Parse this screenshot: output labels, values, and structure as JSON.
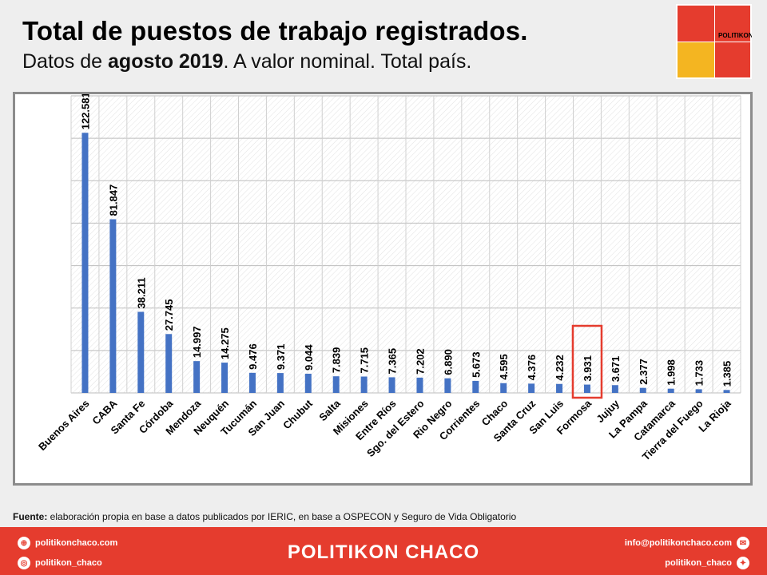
{
  "header": {
    "title": "Total de puestos de trabajo registrados.",
    "subtitle_prefix": "Datos de ",
    "subtitle_bold": "agosto 2019",
    "subtitle_suffix": ". A valor nominal. Total país.",
    "logo_text": "POLITIKON",
    "logo_colors": [
      "#e53c2e",
      "#f4b521"
    ]
  },
  "chart_data": {
    "type": "bar",
    "categories": [
      "Buenos Aires",
      "CABA",
      "Santa Fe",
      "Córdoba",
      "Mendoza",
      "Neuquén",
      "Tucumán",
      "San Juan",
      "Chubut",
      "Salta",
      "Misiones",
      "Entre Ríos",
      "Sgo. del Estero",
      "Rio Negro",
      "Corrientes",
      "Chaco",
      "Santa Cruz",
      "San Luis",
      "Formosa",
      "Jujuy",
      "La Pampa",
      "Catamarca",
      "Tierra del Fuego",
      "La Rioja"
    ],
    "values": [
      122581,
      81847,
      38211,
      27745,
      14997,
      14275,
      9476,
      9371,
      9044,
      7839,
      7715,
      7365,
      7202,
      6890,
      5673,
      4595,
      4376,
      4232,
      3931,
      3671,
      2377,
      1998,
      1733,
      1385
    ],
    "value_labels": [
      "122.581",
      "81.847",
      "38.211",
      "27.745",
      "14.997",
      "14.275",
      "9.476",
      "9.371",
      "9.044",
      "7.839",
      "7.715",
      "7.365",
      "7.202",
      "6.890",
      "5.673",
      "4.595",
      "4.376",
      "4.232",
      "3.931",
      "3.671",
      "2.377",
      "1.998",
      "1.733",
      "1.385"
    ],
    "ylim": [
      0,
      140000
    ],
    "grid": true,
    "bar_color": "#4472c4",
    "highlight": "Formosa",
    "highlight_color": "#e53c2e"
  },
  "source": {
    "label": "Fuente:",
    "text": " elaboración propia en base a datos publicados por IERIC, en base a OSPECON y Seguro de Vida Obligatorio"
  },
  "footer": {
    "web": "politikonchaco.com",
    "instagram": "politikon_chaco",
    "brand": "POLITIKON CHACO",
    "email": "info@politikonchaco.com",
    "twitter": "politikon_chaco"
  }
}
